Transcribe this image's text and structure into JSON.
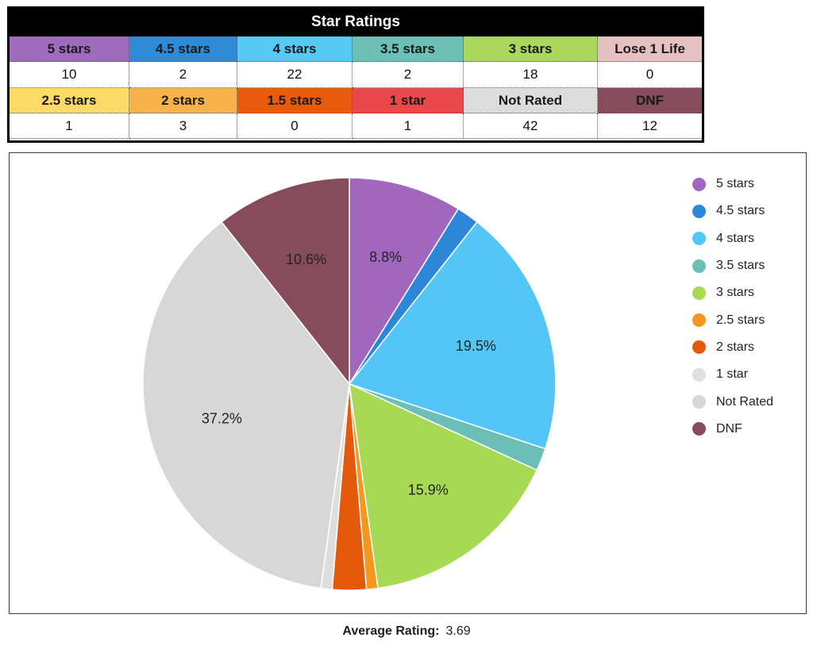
{
  "ratings_table": {
    "title": "Star Ratings",
    "row1": [
      {
        "label": "5 stars",
        "value": "10",
        "color": "#a16bbd"
      },
      {
        "label": "4.5 stars",
        "value": "2",
        "color": "#2f8bd8"
      },
      {
        "label": "4 stars",
        "value": "22",
        "color": "#56c9f5"
      },
      {
        "label": "3.5 stars",
        "value": "2",
        "color": "#6cc0b6"
      },
      {
        "label": "3 stars",
        "value": "18",
        "color": "#a9d85a"
      },
      {
        "label": "Lose 1 Life",
        "value": "0",
        "color": "#e6c1c1"
      }
    ],
    "row2": [
      {
        "label": "2.5 stars",
        "value": "1",
        "color": "#fdd968"
      },
      {
        "label": "2 stars",
        "value": "3",
        "color": "#f7b24b"
      },
      {
        "label": "1.5 stars",
        "value": "0",
        "color": "#e85a0c"
      },
      {
        "label": "1 star",
        "value": "1",
        "color": "#e94848"
      },
      {
        "label": "Not Rated",
        "value": "42",
        "color": "#dcdcdc"
      },
      {
        "label": "DNF",
        "value": "12",
        "color": "#874c5c"
      }
    ]
  },
  "chart_data": {
    "type": "pie",
    "legend_position": "right",
    "slices": [
      {
        "name": "5 stars",
        "value": 10,
        "color": "#a166bd",
        "label": "8.8%"
      },
      {
        "name": "4.5 stars",
        "value": 2,
        "color": "#2d87d9",
        "label": ""
      },
      {
        "name": "4 stars",
        "value": 22,
        "color": "#53c6f5",
        "label": "19.5%"
      },
      {
        "name": "3.5 stars",
        "value": 2,
        "color": "#6cbfb6",
        "label": ""
      },
      {
        "name": "3 stars",
        "value": 18,
        "color": "#a8d955",
        "label": "15.9%"
      },
      {
        "name": "2.5 stars",
        "value": 1,
        "color": "#f5961e",
        "label": ""
      },
      {
        "name": "2 stars",
        "value": 3,
        "color": "#e55a0a",
        "label": ""
      },
      {
        "name": "1 star",
        "value": 1,
        "color": "#dedede",
        "label": ""
      },
      {
        "name": "Not Rated",
        "value": 42,
        "color": "#d7d7d7",
        "label": "37.2%"
      },
      {
        "name": "DNF",
        "value": 12,
        "color": "#874c5c",
        "label": "10.6%"
      }
    ]
  },
  "average": {
    "label": "Average Rating:",
    "value": "3.69"
  }
}
